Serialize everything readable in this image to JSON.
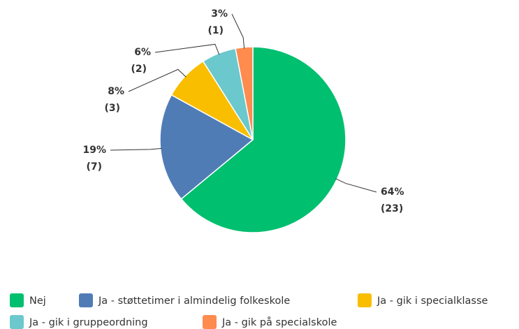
{
  "chart_data": {
    "type": "pie",
    "categories": [
      "Nej",
      "Ja - støttetimer i almindelig folkeskole",
      "Ja - gik i specialklasse",
      "Ja - gik i gruppeordning",
      "Ja - gik på specialskole"
    ],
    "values": [
      64,
      19,
      8,
      6,
      3
    ],
    "value_labels": [
      "64%",
      "19%",
      "8%",
      "6%",
      "3%"
    ],
    "counts": [
      23,
      7,
      3,
      2,
      1
    ],
    "count_labels": [
      "(23)",
      "(7)",
      "(3)",
      "(2)",
      "(1)"
    ],
    "colors": [
      "#00bf6f",
      "#507cb6",
      "#f9be00",
      "#6bc8cd",
      "#ff8b4f"
    ],
    "legend": "bottom"
  }
}
